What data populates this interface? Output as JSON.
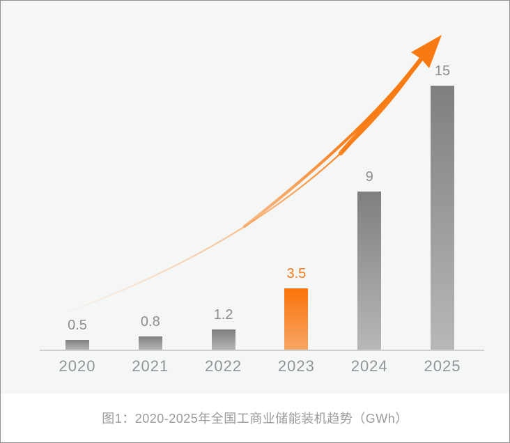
{
  "figure": {
    "caption": "图1：2020-2025年全国工商业储能装机趋势（GWh）"
  },
  "chart_data": {
    "type": "bar",
    "title": "图1：2020-2025年全国工商业储能装机趋势（GWh）",
    "categories": [
      "2020",
      "2021",
      "2022",
      "2023",
      "2024",
      "2025"
    ],
    "values": [
      0.5,
      0.8,
      1.2,
      3.5,
      9,
      15
    ],
    "value_labels": [
      "0.5",
      "0.8",
      "1.2",
      "3.5",
      "9",
      "15"
    ],
    "unit": "GWh",
    "ylim": [
      0,
      16
    ],
    "grid": false,
    "legend": false,
    "highlight_category": "2023",
    "highlight_index": 3,
    "annotations": [
      {
        "type": "curved-growth-arrow",
        "description": "orange exponential growth swoosh arrow from lower-left, fading in, ending in arrowhead at upper-right above the 2025 bar"
      }
    ]
  },
  "colors": {
    "chart_bg": "#f5f7f6",
    "caption_bg": "#ffffff",
    "frame_border": "#8f9193",
    "bar_gray_top": "#7f7f7f",
    "bar_gray_bottom": "#b8b8b8",
    "bar_orange_top": "#fa730a",
    "bar_orange_bottom": "#f7a766",
    "value_label_gray": "#8c8c8c",
    "value_label_orange": "#f8791c",
    "year_label": "#90939a",
    "axis": "#cdced0",
    "arrow": "#f87a12",
    "arrow_mid": "#f9a05a",
    "arrow_light": "#f6c39a",
    "caption_text": "#9a9a9a"
  }
}
